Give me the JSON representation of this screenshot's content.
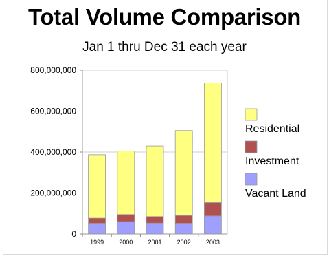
{
  "chart_data": {
    "type": "bar",
    "stacked": true,
    "title": "Total Volume Comparison",
    "subtitle": "Jan 1 thru Dec 31 each year",
    "xlabel": "",
    "ylabel": "",
    "categories": [
      "1999",
      "2000",
      "2001",
      "2002",
      "2003"
    ],
    "ylim": [
      0,
      800000000
    ],
    "yticks": [
      0,
      200000000,
      400000000,
      600000000,
      800000000
    ],
    "ytick_labels": [
      "0",
      "200,000,000",
      "400,000,000",
      "600,000,000",
      "800,000,000"
    ],
    "grid": true,
    "legend_position": "right",
    "series": [
      {
        "name": "Vacant Land",
        "color": "#9f9fff",
        "values": [
          52000000,
          60000000,
          53000000,
          52000000,
          88000000
        ]
      },
      {
        "name": "Investment",
        "color": "#b05050",
        "values": [
          25000000,
          35000000,
          32000000,
          38000000,
          65000000
        ]
      },
      {
        "name": "Residential",
        "color": "#ffff80",
        "values": [
          310000000,
          310000000,
          345000000,
          415000000,
          585000000
        ]
      }
    ],
    "legend_order": [
      "Residential",
      "Investment",
      "Vacant Land"
    ]
  }
}
